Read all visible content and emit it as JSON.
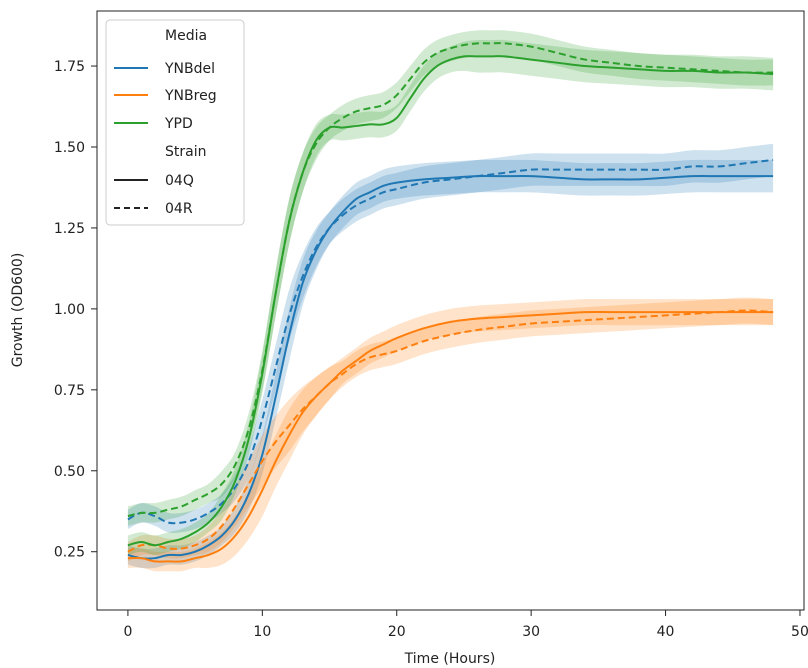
{
  "chart_data": {
    "type": "line",
    "xlabel": "Time (Hours)",
    "ylabel": "Growth (OD600)",
    "xlim": [
      -2.3,
      50.3
    ],
    "ylim": [
      0.07,
      1.92
    ],
    "xticks": [
      0,
      10,
      20,
      30,
      40,
      50
    ],
    "yticks": [
      0.25,
      0.5,
      0.75,
      1.0,
      1.25,
      1.5,
      1.75
    ],
    "xtick_labels": [
      "0",
      "10",
      "20",
      "30",
      "40",
      "50"
    ],
    "ytick_labels": [
      "0.25",
      "0.50",
      "0.75",
      "1.00",
      "1.25",
      "1.50",
      "1.75"
    ],
    "grid": false,
    "legend_position": "top-left",
    "legend": {
      "media_title": "Media",
      "strain_title": "Strain",
      "media": [
        {
          "label": "YNBdel",
          "color": "#1f77b4"
        },
        {
          "label": "YNBreg",
          "color": "#ff7f0e"
        },
        {
          "label": "YPD",
          "color": "#2ca02c"
        }
      ],
      "strains": [
        {
          "label": "04Q",
          "style": "solid"
        },
        {
          "label": "04R",
          "style": "dashed"
        }
      ]
    },
    "series": [
      {
        "media": "YNBdel",
        "strain": "04Q",
        "color": "#1f77b4",
        "style": "solid",
        "x": [
          0,
          1,
          2,
          3,
          4,
          5,
          6,
          7,
          8,
          9,
          10,
          11,
          12,
          13,
          14,
          15,
          16,
          17,
          18,
          19,
          20,
          22,
          24,
          26,
          28,
          30,
          32,
          34,
          36,
          38,
          40,
          42,
          44,
          46,
          48
        ],
        "y": [
          0.24,
          0.23,
          0.23,
          0.24,
          0.24,
          0.25,
          0.27,
          0.3,
          0.35,
          0.43,
          0.55,
          0.73,
          0.92,
          1.08,
          1.18,
          1.25,
          1.3,
          1.34,
          1.36,
          1.38,
          1.39,
          1.4,
          1.405,
          1.41,
          1.41,
          1.41,
          1.405,
          1.4,
          1.4,
          1.4,
          1.405,
          1.41,
          1.41,
          1.41,
          1.41
        ],
        "band": [
          0.03,
          0.03,
          0.03,
          0.03,
          0.03,
          0.03,
          0.03,
          0.03,
          0.04,
          0.05,
          0.06,
          0.07,
          0.08,
          0.07,
          0.06,
          0.05,
          0.05,
          0.05,
          0.05,
          0.05,
          0.05,
          0.05,
          0.05,
          0.05,
          0.05,
          0.05,
          0.05,
          0.05,
          0.05,
          0.05,
          0.05,
          0.05,
          0.05,
          0.05,
          0.05
        ]
      },
      {
        "media": "YNBdel",
        "strain": "04R",
        "color": "#1f77b4",
        "style": "dashed",
        "x": [
          0,
          1,
          2,
          3,
          4,
          5,
          6,
          7,
          8,
          9,
          10,
          11,
          12,
          13,
          14,
          15,
          16,
          17,
          18,
          19,
          20,
          22,
          24,
          26,
          28,
          30,
          32,
          34,
          36,
          38,
          40,
          42,
          44,
          46,
          48
        ],
        "y": [
          0.35,
          0.37,
          0.36,
          0.34,
          0.34,
          0.35,
          0.37,
          0.4,
          0.45,
          0.53,
          0.66,
          0.82,
          0.98,
          1.1,
          1.19,
          1.25,
          1.29,
          1.32,
          1.34,
          1.36,
          1.37,
          1.39,
          1.4,
          1.41,
          1.42,
          1.43,
          1.43,
          1.43,
          1.43,
          1.43,
          1.43,
          1.44,
          1.44,
          1.45,
          1.46
        ],
        "band": [
          0.03,
          0.03,
          0.03,
          0.03,
          0.03,
          0.03,
          0.03,
          0.03,
          0.04,
          0.05,
          0.06,
          0.07,
          0.08,
          0.07,
          0.06,
          0.05,
          0.05,
          0.05,
          0.05,
          0.05,
          0.05,
          0.05,
          0.05,
          0.05,
          0.05,
          0.05,
          0.05,
          0.05,
          0.05,
          0.05,
          0.05,
          0.05,
          0.05,
          0.05,
          0.05
        ]
      },
      {
        "media": "YNBreg",
        "strain": "04Q",
        "color": "#ff7f0e",
        "style": "solid",
        "x": [
          0,
          1,
          2,
          3,
          4,
          5,
          6,
          7,
          8,
          9,
          10,
          11,
          12,
          13,
          14,
          15,
          16,
          17,
          18,
          19,
          20,
          22,
          24,
          26,
          28,
          30,
          32,
          34,
          36,
          38,
          40,
          42,
          44,
          46,
          48
        ],
        "y": [
          0.23,
          0.23,
          0.22,
          0.22,
          0.22,
          0.23,
          0.24,
          0.26,
          0.3,
          0.36,
          0.44,
          0.53,
          0.61,
          0.68,
          0.73,
          0.77,
          0.81,
          0.84,
          0.87,
          0.89,
          0.91,
          0.94,
          0.96,
          0.97,
          0.975,
          0.98,
          0.985,
          0.99,
          0.99,
          0.99,
          0.99,
          0.99,
          0.99,
          0.99,
          0.99
        ],
        "band": [
          0.03,
          0.03,
          0.03,
          0.03,
          0.03,
          0.03,
          0.04,
          0.05,
          0.06,
          0.07,
          0.08,
          0.08,
          0.08,
          0.07,
          0.06,
          0.05,
          0.04,
          0.04,
          0.04,
          0.04,
          0.04,
          0.04,
          0.04,
          0.04,
          0.04,
          0.04,
          0.04,
          0.04,
          0.04,
          0.04,
          0.04,
          0.04,
          0.04,
          0.04,
          0.04
        ]
      },
      {
        "media": "YNBreg",
        "strain": "04R",
        "color": "#ff7f0e",
        "style": "dashed",
        "x": [
          0,
          1,
          2,
          3,
          4,
          5,
          6,
          7,
          8,
          9,
          10,
          11,
          12,
          13,
          14,
          15,
          16,
          17,
          18,
          19,
          20,
          22,
          24,
          26,
          28,
          30,
          32,
          34,
          36,
          38,
          40,
          42,
          44,
          46,
          48
        ],
        "y": [
          0.25,
          0.27,
          0.27,
          0.26,
          0.26,
          0.27,
          0.29,
          0.33,
          0.39,
          0.46,
          0.53,
          0.59,
          0.64,
          0.69,
          0.73,
          0.77,
          0.8,
          0.83,
          0.85,
          0.86,
          0.87,
          0.9,
          0.92,
          0.935,
          0.945,
          0.955,
          0.96,
          0.965,
          0.97,
          0.975,
          0.98,
          0.985,
          0.99,
          0.995,
          0.99
        ],
        "band": [
          0.03,
          0.03,
          0.03,
          0.03,
          0.03,
          0.03,
          0.04,
          0.05,
          0.06,
          0.07,
          0.08,
          0.08,
          0.08,
          0.07,
          0.06,
          0.05,
          0.04,
          0.04,
          0.04,
          0.04,
          0.04,
          0.04,
          0.04,
          0.04,
          0.04,
          0.04,
          0.04,
          0.04,
          0.04,
          0.04,
          0.04,
          0.04,
          0.04,
          0.04,
          0.04
        ]
      },
      {
        "media": "YPD",
        "strain": "04Q",
        "color": "#2ca02c",
        "style": "solid",
        "x": [
          0,
          1,
          2,
          3,
          4,
          5,
          6,
          7,
          8,
          9,
          10,
          11,
          12,
          13,
          14,
          15,
          16,
          17,
          18,
          19,
          20,
          21,
          22,
          23,
          24,
          25,
          26,
          27,
          28,
          30,
          32,
          34,
          36,
          38,
          40,
          42,
          44,
          46,
          48
        ],
        "y": [
          0.27,
          0.28,
          0.27,
          0.28,
          0.29,
          0.31,
          0.34,
          0.39,
          0.47,
          0.6,
          0.8,
          1.05,
          1.27,
          1.42,
          1.52,
          1.56,
          1.56,
          1.565,
          1.57,
          1.57,
          1.59,
          1.65,
          1.71,
          1.75,
          1.77,
          1.78,
          1.78,
          1.78,
          1.78,
          1.77,
          1.76,
          1.75,
          1.745,
          1.74,
          1.735,
          1.735,
          1.73,
          1.73,
          1.725
        ],
        "band": [
          0.03,
          0.03,
          0.03,
          0.03,
          0.03,
          0.03,
          0.03,
          0.04,
          0.04,
          0.05,
          0.06,
          0.07,
          0.07,
          0.06,
          0.05,
          0.04,
          0.04,
          0.04,
          0.04,
          0.04,
          0.04,
          0.04,
          0.04,
          0.04,
          0.04,
          0.045,
          0.05,
          0.05,
          0.05,
          0.05,
          0.05,
          0.05,
          0.05,
          0.05,
          0.05,
          0.05,
          0.05,
          0.05,
          0.05
        ]
      },
      {
        "media": "YPD",
        "strain": "04R",
        "color": "#2ca02c",
        "style": "dashed",
        "x": [
          0,
          1,
          2,
          3,
          4,
          5,
          6,
          7,
          8,
          9,
          10,
          11,
          12,
          13,
          14,
          15,
          16,
          17,
          18,
          19,
          20,
          21,
          22,
          23,
          24,
          25,
          26,
          27,
          28,
          30,
          32,
          34,
          36,
          38,
          40,
          42,
          44,
          46,
          48
        ],
        "y": [
          0.36,
          0.37,
          0.37,
          0.38,
          0.39,
          0.41,
          0.43,
          0.46,
          0.52,
          0.63,
          0.81,
          1.05,
          1.27,
          1.42,
          1.51,
          1.56,
          1.59,
          1.61,
          1.62,
          1.63,
          1.66,
          1.71,
          1.76,
          1.79,
          1.805,
          1.815,
          1.82,
          1.82,
          1.82,
          1.81,
          1.79,
          1.77,
          1.76,
          1.75,
          1.745,
          1.74,
          1.735,
          1.73,
          1.73
        ],
        "band": [
          0.03,
          0.03,
          0.03,
          0.03,
          0.03,
          0.03,
          0.03,
          0.04,
          0.04,
          0.05,
          0.06,
          0.07,
          0.07,
          0.06,
          0.05,
          0.04,
          0.04,
          0.04,
          0.04,
          0.04,
          0.04,
          0.04,
          0.04,
          0.04,
          0.04,
          0.04,
          0.04,
          0.04,
          0.04,
          0.04,
          0.04,
          0.04,
          0.04,
          0.04,
          0.04,
          0.04,
          0.04,
          0.04,
          0.04
        ]
      }
    ]
  }
}
